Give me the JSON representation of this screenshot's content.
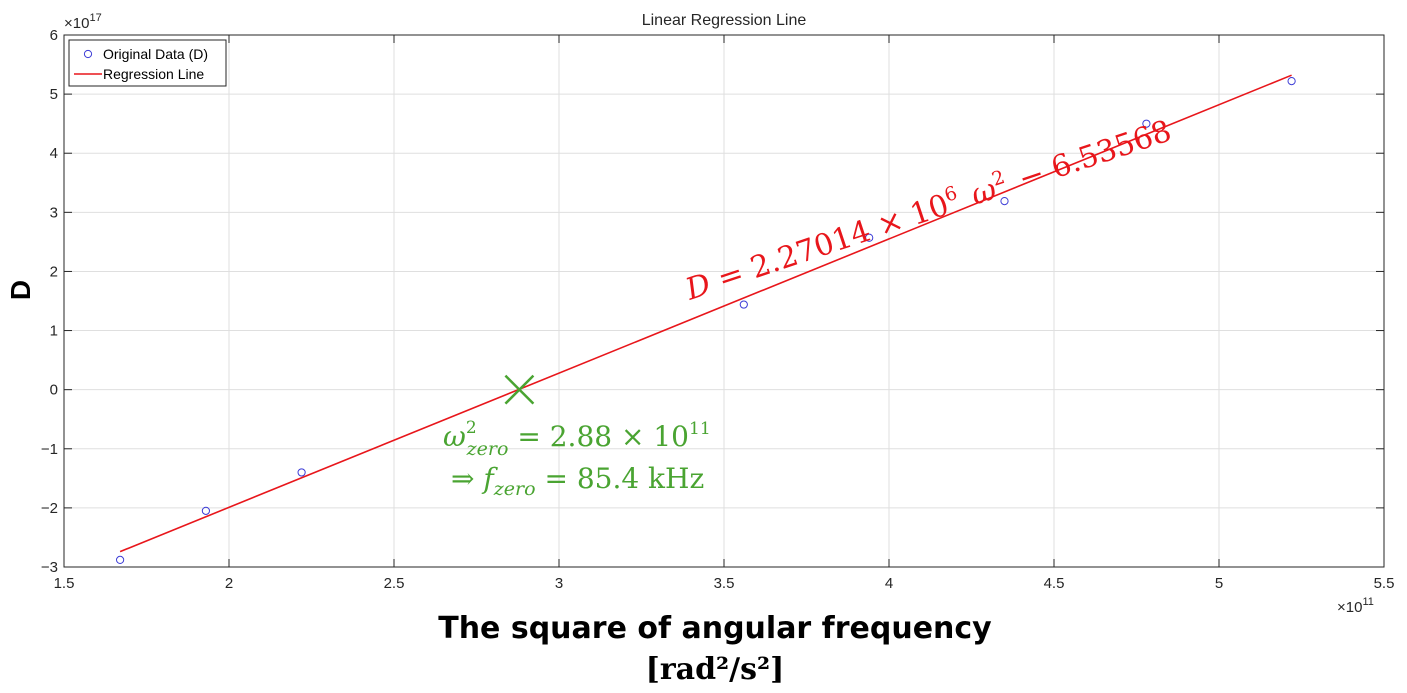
{
  "chart_data": {
    "type": "scatter",
    "title": "Linear Regression Line",
    "xlabel": "The square of angular frequency",
    "xlabel_unit": "[rad²/s²]",
    "ylabel": "D",
    "x_exponent_label": "×10",
    "x_exponent": "11",
    "y_exponent_label": "×10",
    "y_exponent": "17",
    "xlim": [
      1.5,
      5.5
    ],
    "ylim": [
      -3,
      6
    ],
    "x_scale_factor": "1e11",
    "y_scale_factor": "1e17",
    "xticks": [
      1.5,
      2,
      2.5,
      3,
      3.5,
      4,
      4.5,
      5,
      5.5
    ],
    "xtick_labels": [
      "1.5",
      "2",
      "2.5",
      "3",
      "3.5",
      "4",
      "4.5",
      "5",
      "5.5"
    ],
    "yticks": [
      -3,
      -2,
      -1,
      0,
      1,
      2,
      3,
      4,
      5,
      6
    ],
    "ytick_labels": [
      "−3",
      "−2",
      "−1",
      "0",
      "1",
      "2",
      "3",
      "4",
      "5",
      "6"
    ],
    "grid": true,
    "legend_position": "top-left",
    "series": [
      {
        "name": "Original Data (D)",
        "type": "scatter",
        "marker": "circle",
        "color": "#3b3bd6",
        "x": [
          1.67,
          1.93,
          2.22,
          3.56,
          3.94,
          4.35,
          4.78,
          5.22
        ],
        "y": [
          -2.88,
          -2.05,
          -1.4,
          1.44,
          2.57,
          3.19,
          4.5,
          5.22
        ]
      },
      {
        "name": "Regression Line",
        "type": "line",
        "color": "#e8161b",
        "x": [
          1.67,
          5.22
        ],
        "y": [
          -2.74,
          5.32
        ]
      }
    ],
    "annotations": {
      "equation": {
        "lhs": "D",
        "eq": "=",
        "coef": "2.27014",
        "times": "×",
        "base": "10",
        "exp": "6",
        "var": "ω",
        "var_exp": "2",
        "minus": "−",
        "const": "6.53568",
        "color": "#e8161b"
      },
      "zero_marker": {
        "x": 2.88,
        "y": 0,
        "color": "#4aa432",
        "symbol": "×"
      },
      "zero_text": {
        "omega": "ω",
        "sub": "zero",
        "sup": "2",
        "eq": "=",
        "value": "2.88",
        "times": "×",
        "base": "10",
        "exp": "11",
        "arrow": "⇒",
        "f": "f",
        "f_value": "85.4 kHz",
        "color": "#4aa432"
      }
    }
  }
}
